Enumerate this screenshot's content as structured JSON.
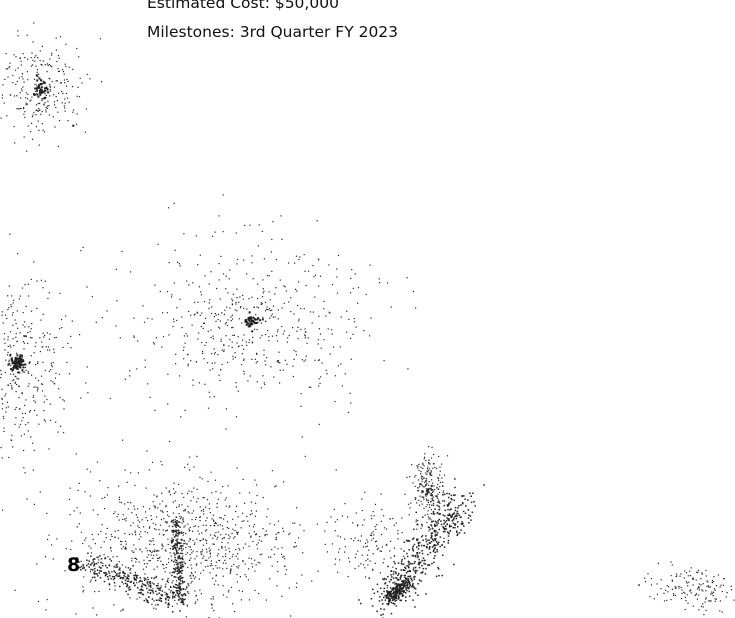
{
  "document": {
    "lines": [
      "Estimated Cost: $50,000",
      "Milestones: 3rd Quarter FY 2023"
    ],
    "page_marker": "8"
  }
}
